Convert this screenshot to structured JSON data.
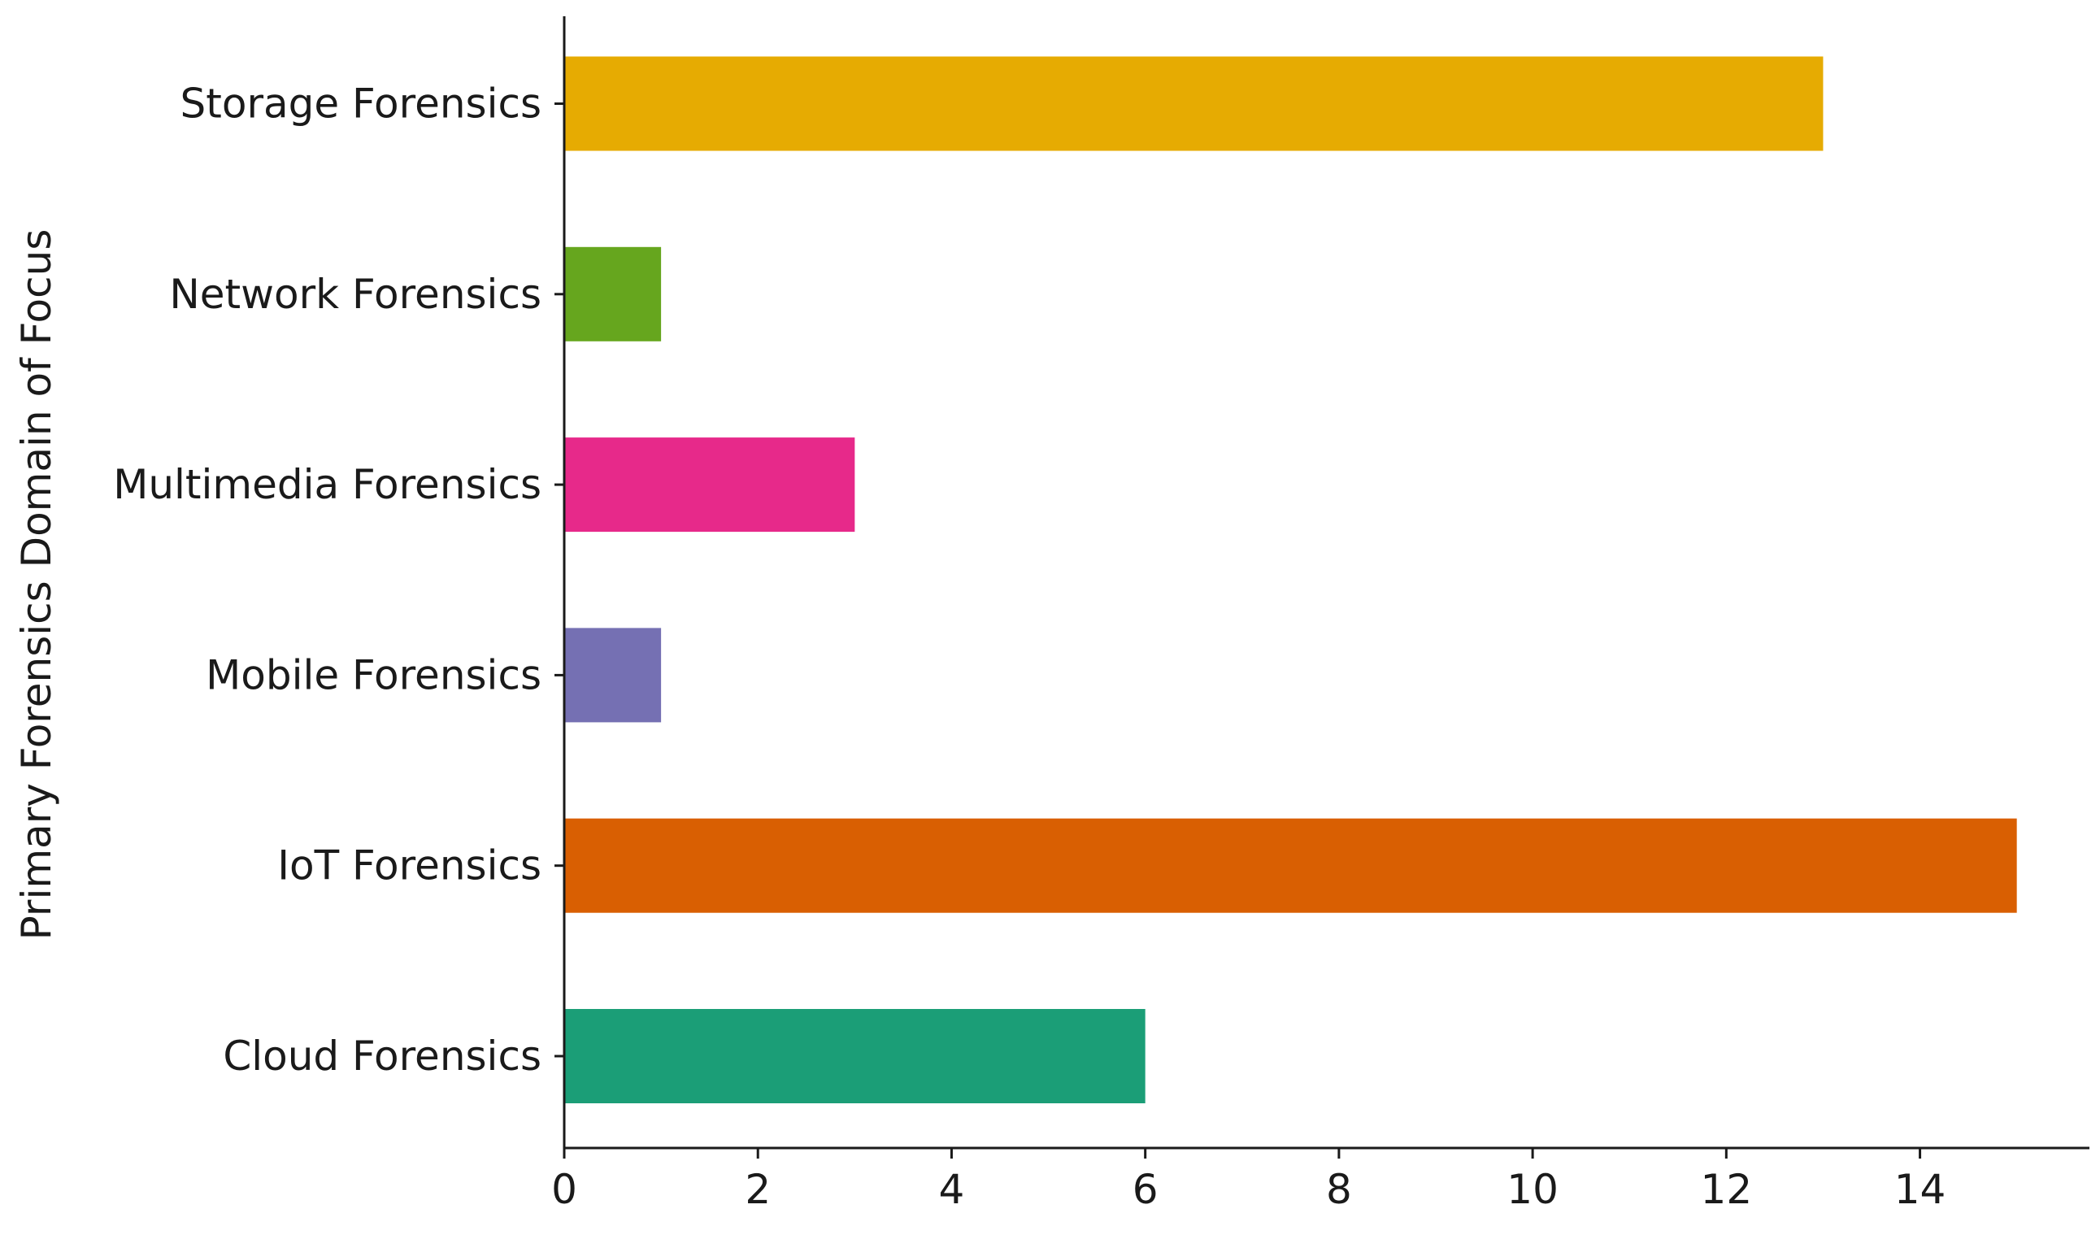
{
  "chart_data": {
    "type": "bar",
    "orientation": "horizontal",
    "title": "",
    "xlabel": "",
    "ylabel": "Primary Forensics Domain of Focus",
    "categories": [
      "Cloud Forensics",
      "IoT Forensics",
      "Mobile Forensics",
      "Multimedia Forensics",
      "Network Forensics",
      "Storage Forensics"
    ],
    "values": [
      6,
      15,
      1,
      3,
      1,
      13
    ],
    "colors": [
      "#1b9e77",
      "#d95f02",
      "#7570b3",
      "#e7298a",
      "#66a61e",
      "#e6ab02"
    ],
    "xlim": [
      0,
      15.75
    ],
    "xticks": [
      0,
      2,
      4,
      6,
      8,
      10,
      12,
      14
    ],
    "grid": false,
    "legend": "none"
  }
}
